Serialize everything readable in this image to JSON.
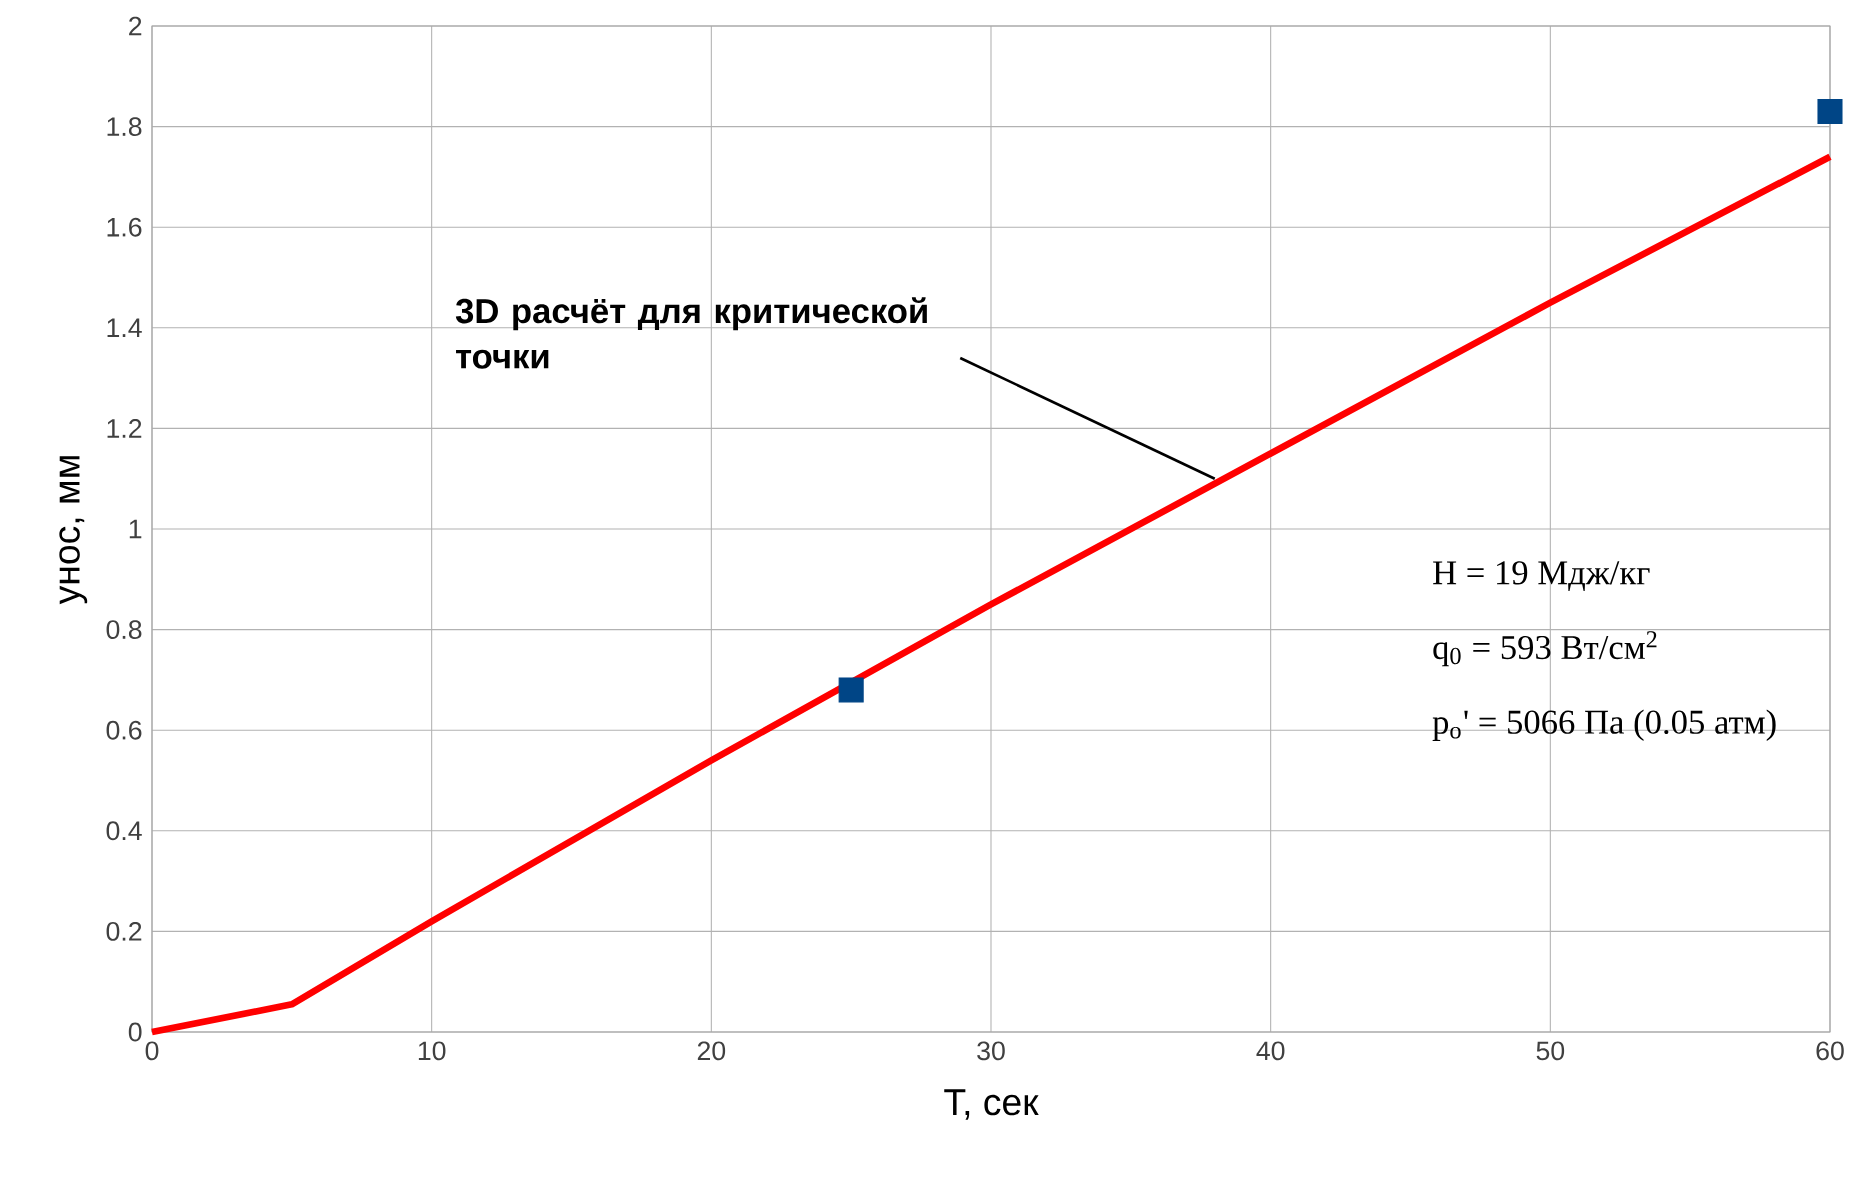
{
  "chart_data": {
    "type": "line",
    "xlabel": "T, сек",
    "ylabel": "унос, мм",
    "xlim": [
      0,
      60
    ],
    "ylim": [
      0,
      2
    ],
    "xticks": [
      0,
      10,
      20,
      30,
      40,
      50,
      60
    ],
    "yticks": [
      0,
      0.2,
      0.4,
      0.6,
      0.8,
      1,
      1.2,
      1.4,
      1.6,
      1.8,
      2
    ],
    "grid": true,
    "series": [
      {
        "color": "#ff0000",
        "x": [
          0,
          5,
          10,
          20,
          30,
          40,
          50,
          60
        ],
        "values": [
          0,
          0.055,
          0.22,
          0.54,
          0.85,
          1.15,
          1.45,
          1.74
        ]
      },
      {
        "type": "scatter",
        "color": "#004586",
        "marker": "square",
        "x": [
          25,
          60
        ],
        "values": [
          0.68,
          1.83
        ]
      }
    ],
    "annotations": [
      {
        "text": "3D расчёт для критической точки",
        "x": 38,
        "y": 1.1
      },
      "H  =  19 Мдж/кг",
      "q$_{0}$  = 593 Вт/см$^{2}$",
      "p$_{o}$' = 5066 Па (0.05 атм)"
    ]
  }
}
